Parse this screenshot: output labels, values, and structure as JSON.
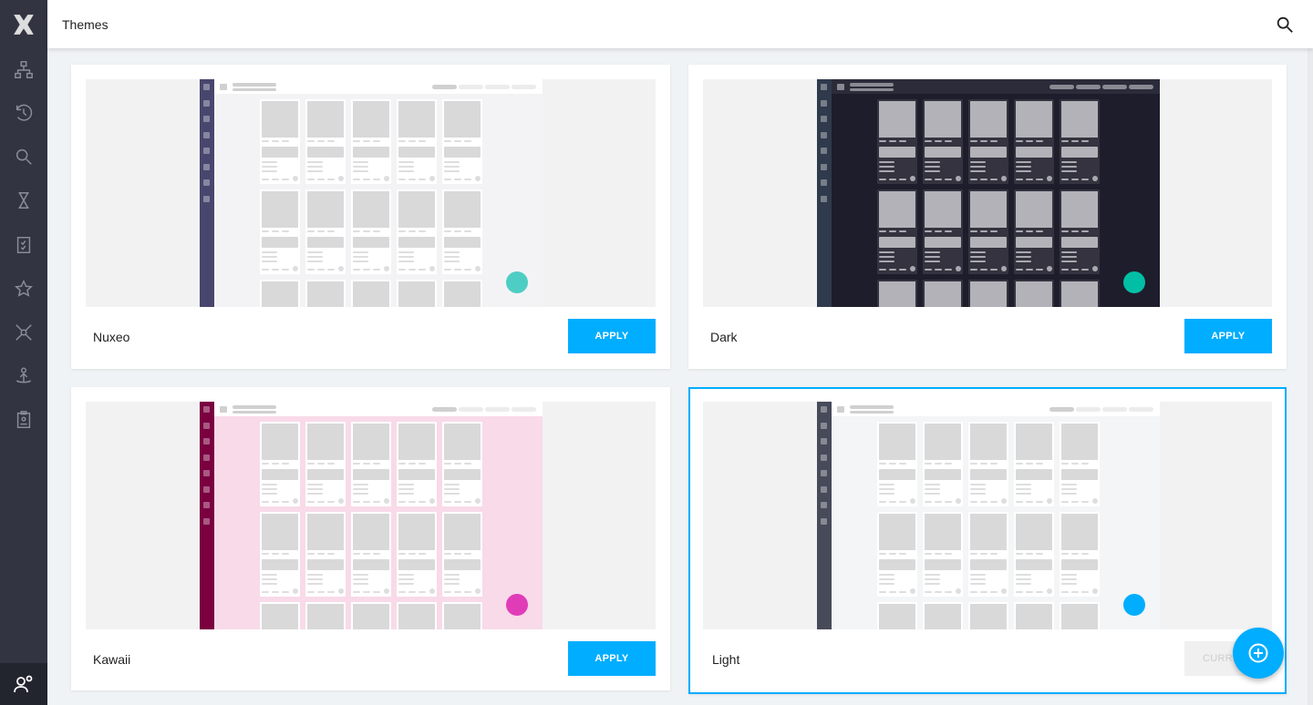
{
  "header": {
    "title": "Themes",
    "search_icon": "search-icon"
  },
  "sidebar": {
    "items": [
      "logo-icon",
      "browse-icon",
      "history-icon",
      "search-icon",
      "hourglass-icon",
      "tasks-icon",
      "favorites-icon",
      "network-icon",
      "upload-icon",
      "clipboard-user-icon"
    ],
    "bottom": "user-settings-icon"
  },
  "themes": [
    {
      "name": "Nuxeo",
      "button": "APPLY",
      "current": false,
      "colors": {
        "side": "#48466e",
        "bg": "#f3f3f5",
        "head": "#ffffff",
        "card": "#ffffff",
        "tile": "#d9d9d9",
        "line": "#dedede",
        "fab": "#4ecdc4",
        "pill": "#d0d0d0"
      }
    },
    {
      "name": "Dark",
      "button": "APPLY",
      "current": false,
      "colors": {
        "side": "#2f3a4c",
        "bg": "#1e1d2b",
        "head": "#2c2b3a",
        "card": "#34333f",
        "tile": "#b3b2b8",
        "line": "#a9a9b0",
        "fab": "#00bfa5",
        "pill": "#8a8a93"
      }
    },
    {
      "name": "Kawaii",
      "button": "APPLY",
      "current": false,
      "colors": {
        "side": "#7a0040",
        "bg": "#f8dae8",
        "head": "#ffffff",
        "card": "#ffffff",
        "tile": "#d9d9d9",
        "line": "#dedede",
        "fab": "#e03cb8",
        "pill": "#d0d0d0"
      }
    },
    {
      "name": "Light",
      "button": "CURRENT",
      "current": true,
      "colors": {
        "side": "#474a59",
        "bg": "#f3f5f6",
        "head": "#ffffff",
        "card": "#ffffff",
        "tile": "#d9d9d9",
        "line": "#dedede",
        "fab": "#00adff",
        "pill": "#d0d0d0"
      }
    }
  ],
  "accent": "#00adff"
}
